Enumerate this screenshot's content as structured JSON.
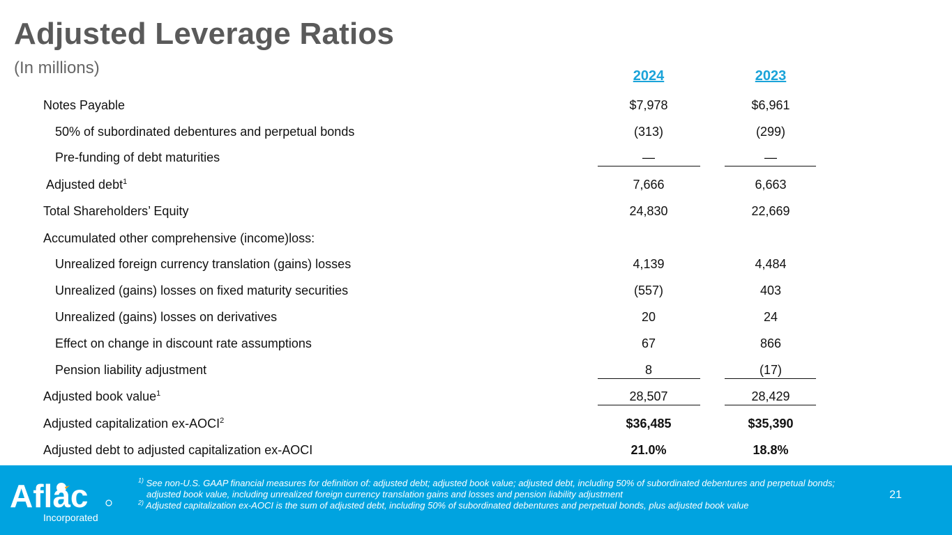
{
  "header": {
    "title": "Adjusted Leverage Ratios",
    "subtitle": "(In millions)"
  },
  "columns": [
    "2024",
    "2023"
  ],
  "rows": [
    {
      "label": "Notes Payable",
      "sup": "",
      "v2024": "$7,978",
      "v2023": "$6,961"
    },
    {
      "label": "50% of subordinated debentures and perpetual bonds",
      "sup": "",
      "v2024": "(313)",
      "v2023": "(299)"
    },
    {
      "label": "Pre-funding of debt maturities",
      "sup": "",
      "v2024": "—",
      "v2023": "—"
    },
    {
      "label": "Adjusted debt",
      "sup": "1",
      "v2024": "7,666",
      "v2023": "6,663"
    },
    {
      "label": "Total Shareholders’ Equity",
      "sup": "",
      "v2024": "24,830",
      "v2023": "22,669"
    },
    {
      "label": "Accumulated other comprehensive (income)loss:",
      "sup": "",
      "v2024": "",
      "v2023": ""
    },
    {
      "label": "Unrealized foreign currency translation (gains) losses",
      "sup": "",
      "v2024": "4,139",
      "v2023": "4,484"
    },
    {
      "label": "Unrealized (gains) losses on fixed maturity securities",
      "sup": "",
      "v2024": "(557)",
      "v2023": "403"
    },
    {
      "label": "Unrealized (gains) losses on derivatives",
      "sup": "",
      "v2024": "20",
      "v2023": "24"
    },
    {
      "label": "Effect on change in discount rate assumptions",
      "sup": "",
      "v2024": "67",
      "v2023": "866"
    },
    {
      "label": "Pension liability adjustment",
      "sup": "",
      "v2024": "8",
      "v2023": "(17)"
    },
    {
      "label": "Adjusted book value",
      "sup": "1",
      "v2024": "28,507",
      "v2023": "28,429"
    },
    {
      "label": "Adjusted capitalization ex-AOCI",
      "sup": "2",
      "v2024": "$36,485",
      "v2023": "$35,390"
    },
    {
      "label": "Adjusted debt to adjusted capitalization ex-AOCI",
      "sup": "",
      "v2024": "21.0%",
      "v2023": "18.8%"
    }
  ],
  "footer": {
    "logo_text": "Aflac",
    "logo_sub": "Incorporated",
    "note1_mark": "1)",
    "note1_line1": "See non-U.S. GAAP financial measures for definition of: adjusted debt; adjusted book value; adjusted debt, including 50% of subordinated debentures and perpetual bonds;",
    "note1_line2": "adjusted book value, including unrealized foreign currency translation gains and losses and pension liability adjustment",
    "note2_mark": "2)",
    "note2_text": "Adjusted capitalization ex-AOCI is the sum of adjusted debt, including 50% of subordinated debentures and perpetual bonds, plus adjusted book value",
    "page_number": "21"
  },
  "colors": {
    "title": "#5a5a5a",
    "column_header": "#1aa3d9",
    "footer_bg": "#00a3e0"
  }
}
